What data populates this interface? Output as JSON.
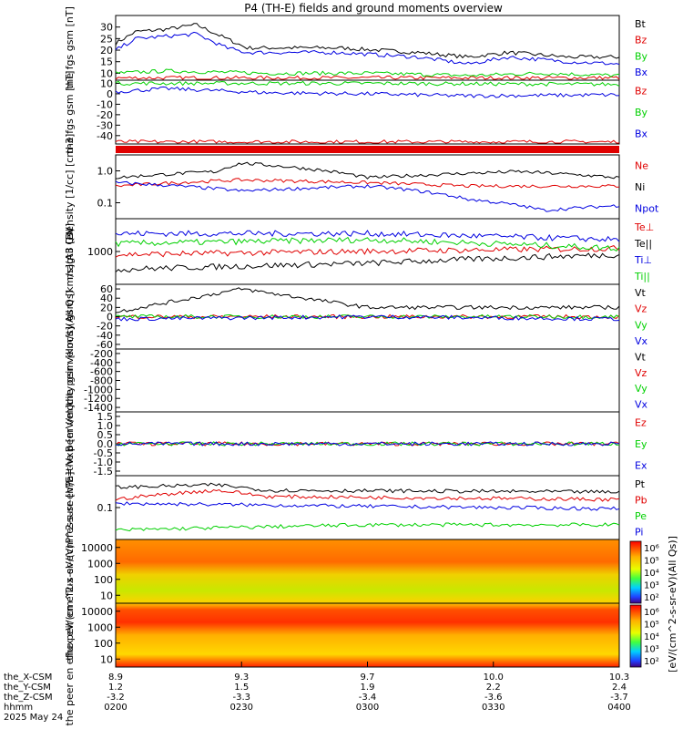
{
  "title": "P4 (TH-E) fields and ground moments overview",
  "colors": {
    "black": "#000000",
    "red": "#e00000",
    "green": "#00d000",
    "blue": "#0000e0"
  },
  "chart_data": [
    {
      "type": "line",
      "ylabel": "the fgs gsm [nT]",
      "yticks": [
        10,
        15,
        20,
        25,
        30
      ],
      "ylim": [
        7,
        35
      ],
      "series": [
        {
          "name": "Bt",
          "color": "#000000",
          "x": [
            0,
            0.04,
            0.1,
            0.16,
            0.22,
            0.26,
            0.34,
            0.44,
            0.52,
            0.6,
            0.7,
            0.78,
            0.9,
            1
          ],
          "y": [
            23,
            28,
            29,
            31,
            25,
            21,
            21,
            21,
            20,
            19,
            17,
            19,
            17,
            17
          ]
        },
        {
          "name": "Bz",
          "color": "#e00000",
          "x": [
            0,
            0.5,
            1
          ],
          "y": [
            8,
            8,
            8
          ]
        },
        {
          "name": "By",
          "color": "#00d000",
          "x": [
            0,
            0.1,
            0.3,
            0.5,
            0.7,
            0.85,
            1
          ],
          "y": [
            10,
            11,
            10,
            10,
            9,
            10,
            9
          ]
        },
        {
          "name": "Bx",
          "color": "#0000e0",
          "x": [
            0,
            0.04,
            0.1,
            0.16,
            0.22,
            0.26,
            0.34,
            0.44,
            0.52,
            0.6,
            0.7,
            0.78,
            0.9,
            1
          ],
          "y": [
            20,
            25,
            26,
            27,
            21,
            19,
            19,
            19,
            18,
            17,
            14,
            17,
            15,
            14
          ]
        }
      ],
      "legend": [
        {
          "label": "Bt",
          "color": "#000000"
        },
        {
          "label": "Bz",
          "color": "#e00000"
        },
        {
          "label": "By",
          "color": "#00d000"
        },
        {
          "label": "Bx",
          "color": "#0000e0"
        }
      ]
    },
    {
      "type": "line",
      "ylabel": "the fgs gsm [nT]",
      "yticks": [
        10,
        0,
        -10,
        -20,
        -30,
        -40
      ],
      "ylim": [
        -48,
        13
      ],
      "series": [
        {
          "name": "Bz",
          "color": "#e00000",
          "x": [
            0,
            0.5,
            1
          ],
          "y": [
            -46,
            -46,
            -46
          ]
        },
        {
          "name": "By",
          "color": "#00d000",
          "x": [
            0,
            0.5,
            1
          ],
          "y": [
            10,
            10,
            9
          ]
        },
        {
          "name": "Bx",
          "color": "#0000e0",
          "x": [
            0,
            0.1,
            0.2,
            0.3,
            0.5,
            0.7,
            1
          ],
          "y": [
            2,
            5,
            3,
            1,
            0,
            -2,
            -1
          ]
        }
      ],
      "legend": [
        {
          "label": "Bz",
          "color": "#e00000"
        },
        {
          "label": "By",
          "color": "#00d000"
        },
        {
          "label": "Bx",
          "color": "#0000e0"
        }
      ]
    },
    {
      "type": "line",
      "ylabel": "Density [1/cc] [cm-3]",
      "yticks": [
        "1.0",
        "0.1"
      ],
      "series": [
        {
          "name": "Ne",
          "color": "#e00000",
          "x": [
            0,
            0.25,
            0.5,
            0.7,
            1
          ],
          "y": [
            0.15,
            0.25,
            0.2,
            0.15,
            0.15
          ]
        },
        {
          "name": "Ni",
          "color": "#000000",
          "x": [
            0,
            0.2,
            0.25,
            0.5,
            0.8,
            1
          ],
          "y": [
            0.3,
            0.5,
            1.0,
            0.3,
            0.5,
            0.3
          ]
        },
        {
          "name": "Npot",
          "color": "#0000e0",
          "x": [
            0,
            0.25,
            0.5,
            0.7,
            0.85,
            1
          ],
          "y": [
            0.2,
            0.1,
            0.15,
            0.05,
            0.02,
            0.03
          ]
        }
      ],
      "legend": [
        {
          "label": "Ne",
          "color": "#e00000"
        },
        {
          "label": "Ni",
          "color": "#000000"
        },
        {
          "label": "Npot",
          "color": "#0000e0"
        }
      ]
    },
    {
      "type": "line",
      "ylabel": "magt3 [eV]",
      "yticks": [
        "1000"
      ],
      "series": [
        {
          "name": "Te⊥",
          "color": "#e00000",
          "x": [
            0,
            0.5,
            1
          ],
          "y": [
            3000,
            3500,
            4000
          ]
        },
        {
          "name": "Te||",
          "color": "#000000",
          "x": [
            0,
            0.5,
            1
          ],
          "y": [
            1500,
            2000,
            3000
          ]
        },
        {
          "name": "Ti⊥",
          "color": "#0000e0",
          "x": [
            0,
            0.5,
            1
          ],
          "y": [
            8000,
            8000,
            6000
          ]
        },
        {
          "name": "Ti||",
          "color": "#00d000",
          "x": [
            0,
            0.5,
            1
          ],
          "y": [
            5000,
            6000,
            4000
          ]
        }
      ],
      "legend": [
        {
          "label": "Te⊥",
          "color": "#e00000"
        },
        {
          "label": "Te||",
          "color": "#000000"
        },
        {
          "label": "Ti⊥",
          "color": "#0000e0"
        },
        {
          "label": "Ti||",
          "color": "#00d000"
        }
      ]
    },
    {
      "type": "line",
      "ylabel": "the peir velocity gsm [km/s](All Qs)",
      "yticks": [
        60,
        40,
        20,
        0,
        -20,
        -40,
        -60
      ],
      "ylim": [
        -70,
        70
      ],
      "series": [
        {
          "name": "Vt",
          "color": "#000000",
          "x": [
            0,
            0.25,
            0.5,
            1
          ],
          "y": [
            10,
            60,
            20,
            20
          ]
        },
        {
          "name": "Vz",
          "color": "#e00000",
          "x": [
            0,
            0.5,
            1
          ],
          "y": [
            0,
            0,
            0
          ]
        },
        {
          "name": "Vy",
          "color": "#00d000",
          "x": [
            0,
            0.5,
            1
          ],
          "y": [
            0,
            0,
            0
          ]
        },
        {
          "name": "Vx",
          "color": "#0000e0",
          "x": [
            0,
            0.5,
            1
          ],
          "y": [
            -5,
            0,
            -5
          ]
        }
      ],
      "legend": [
        {
          "label": "Vt",
          "color": "#000000"
        },
        {
          "label": "Vz",
          "color": "#e00000"
        },
        {
          "label": "Vy",
          "color": "#00d000"
        },
        {
          "label": "Vx",
          "color": "#0000e0"
        }
      ]
    },
    {
      "type": "line",
      "ylabel": "the peer velocity gsm [km/s](All Qs)",
      "yticks": [
        -200,
        -400,
        -600,
        -800,
        -1000,
        -1200,
        -1400
      ],
      "series": [],
      "legend": [
        {
          "label": "Vt",
          "color": "#000000"
        },
        {
          "label": "Vz",
          "color": "#e00000"
        },
        {
          "label": "Vy",
          "color": "#00d000"
        },
        {
          "label": "Vx",
          "color": "#0000e0"
        }
      ]
    },
    {
      "type": "line",
      "ylabel": "E=-VxB [mV/m]",
      "yticks": [
        "1.5",
        "1.0",
        "0.5",
        "0.0",
        "-0.5",
        "-1.0",
        "-1.5"
      ],
      "ylim": [
        -1.7,
        1.7
      ],
      "series": [
        {
          "name": "Ez",
          "color": "#e00000",
          "x": [
            0,
            0.5,
            1
          ],
          "y": [
            0,
            0,
            0
          ]
        },
        {
          "name": "Ey",
          "color": "#00d000",
          "x": [
            0,
            0.5,
            1
          ],
          "y": [
            0,
            0,
            0
          ]
        },
        {
          "name": "Ex",
          "color": "#0000e0",
          "x": [
            0,
            0.5,
            1
          ],
          "y": [
            0,
            0,
            0
          ]
        }
      ],
      "legend": [
        {
          "label": "Ez",
          "color": "#e00000"
        },
        {
          "label": "Ey",
          "color": "#00d000"
        },
        {
          "label": "Ex",
          "color": "#0000e0"
        }
      ]
    },
    {
      "type": "line",
      "ylabel": "Pressure [nPa]",
      "yticks": [
        "0.1"
      ],
      "series": [
        {
          "name": "Pt",
          "color": "#000000",
          "x": [
            0,
            0.2,
            0.3,
            1
          ],
          "y": [
            0.5,
            0.6,
            0.4,
            0.35
          ]
        },
        {
          "name": "Pb",
          "color": "#e00000",
          "x": [
            0,
            0.2,
            0.3,
            1
          ],
          "y": [
            0.2,
            0.4,
            0.25,
            0.2
          ]
        },
        {
          "name": "Pe",
          "color": "#00d000",
          "x": [
            0,
            0.5,
            1
          ],
          "y": [
            0.02,
            0.03,
            0.03
          ]
        },
        {
          "name": "Pi",
          "color": "#0000e0",
          "x": [
            0,
            0.5,
            1
          ],
          "y": [
            0.15,
            0.12,
            0.1
          ]
        }
      ],
      "legend": [
        {
          "label": "Pt",
          "color": "#000000"
        },
        {
          "label": "Pb",
          "color": "#e00000"
        },
        {
          "label": "Pe",
          "color": "#00d000"
        },
        {
          "label": "Pi",
          "color": "#0000e0"
        }
      ]
    },
    {
      "type": "heatmap",
      "ylabel": "the peir en eflux eV/(cm^2-s-sr-eV)",
      "yticks": [
        "10000",
        "1000",
        "100",
        "10"
      ],
      "legend": []
    },
    {
      "type": "heatmap",
      "ylabel": "the peer en eflux eV/(cm^2-s-sr-eV)",
      "yticks": [
        "10000",
        "1000",
        "100",
        "10"
      ],
      "legend": []
    }
  ],
  "colorbar": {
    "label": "[eV/(cm^2-s-sr-eV)(All Qs)]",
    "ticks_top": [
      "10⁶",
      "10⁵",
      "10⁴",
      "10³",
      "10²"
    ],
    "ticks_bottom": [
      "10⁶",
      "10⁵",
      "10⁴",
      "10³",
      "10²"
    ]
  },
  "x_axis": {
    "rows": [
      {
        "label": "the_X-CSM",
        "values": [
          "8.9",
          "9.3",
          "9.7",
          "10.0",
          "10.3"
        ]
      },
      {
        "label": "the_Y-CSM",
        "values": [
          "1.2",
          "1.5",
          "1.9",
          "2.2",
          "2.4"
        ]
      },
      {
        "label": "the_Z-CSM",
        "values": [
          "-3.2",
          "-3.3",
          "-3.4",
          "-3.6",
          "-3.7"
        ]
      },
      {
        "label": "hhmm",
        "values": [
          "0200",
          "0230",
          "0300",
          "0330",
          "0400"
        ]
      }
    ],
    "date": "2025 May 24"
  }
}
